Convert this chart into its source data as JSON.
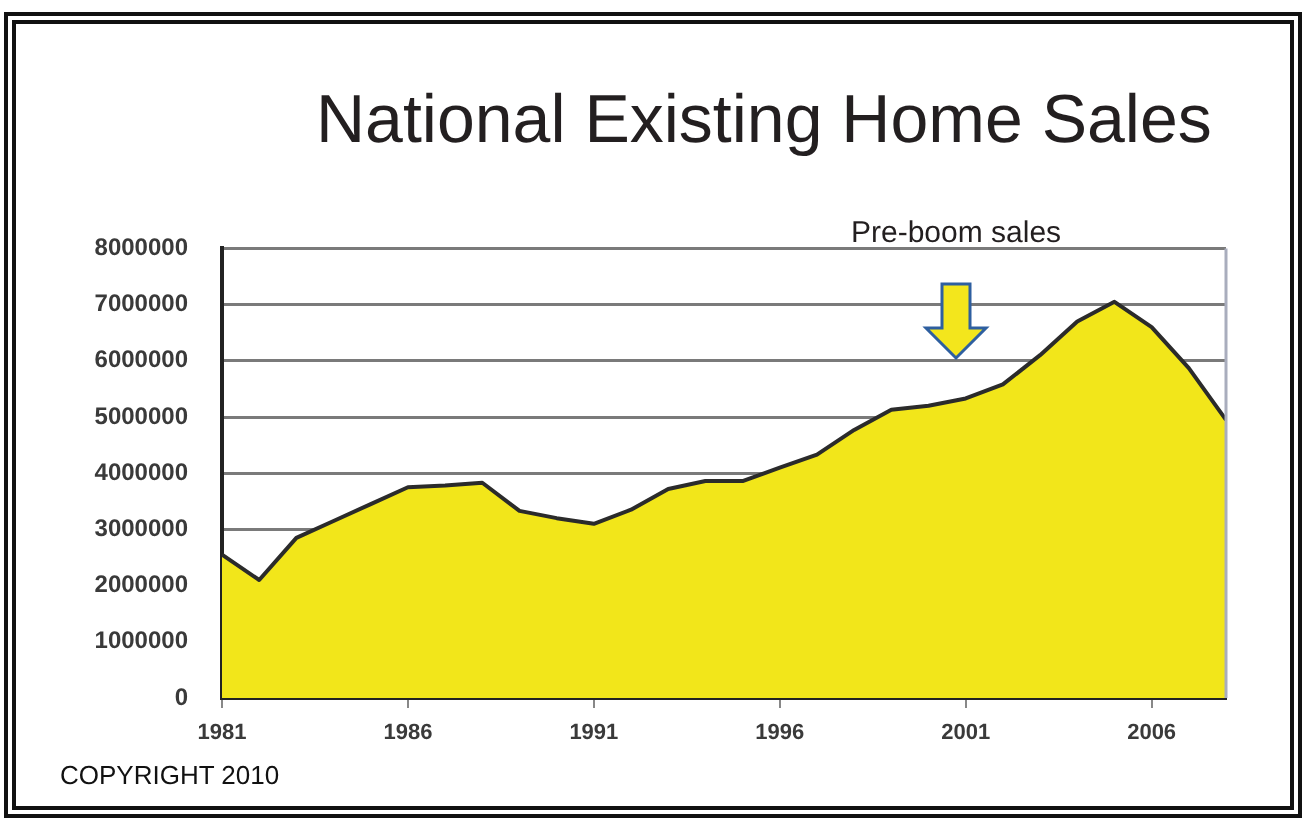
{
  "chart_data": {
    "type": "area",
    "title": "National Existing Home Sales",
    "x": [
      1981,
      1982,
      1983,
      1984,
      1985,
      1986,
      1987,
      1988,
      1989,
      1990,
      1991,
      1992,
      1993,
      1994,
      1995,
      1996,
      1997,
      1998,
      1999,
      2000,
      2001,
      2002,
      2003,
      2004,
      2005,
      2006,
      2007,
      2008
    ],
    "values": [
      2550000,
      2100000,
      2850000,
      3150000,
      3450000,
      3750000,
      3780000,
      3830000,
      3330000,
      3200000,
      3100000,
      3350000,
      3720000,
      3860000,
      3860000,
      4100000,
      4330000,
      4770000,
      5130000,
      5200000,
      5330000,
      5580000,
      6100000,
      6700000,
      7050000,
      6600000,
      5870000,
      4950000
    ],
    "color": "#f2e61a",
    "xlim": [
      1981,
      2008
    ],
    "xticks": [
      1981,
      1986,
      1991,
      1996,
      2001,
      2006
    ],
    "ylim": [
      0,
      8000000
    ],
    "yticks": [
      0,
      1000000,
      2000000,
      3000000,
      4000000,
      5000000,
      6000000,
      7000000,
      8000000
    ],
    "grid": "y",
    "legend": false,
    "annotations": [
      "Pre-boom sales",
      "COPYRIGHT 2010"
    ]
  }
}
